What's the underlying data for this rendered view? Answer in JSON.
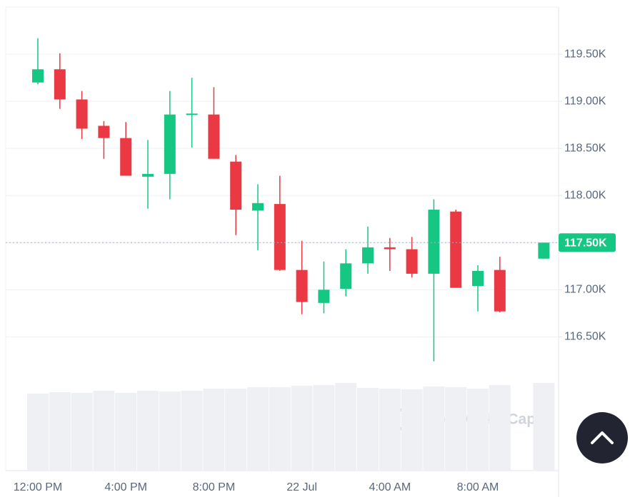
{
  "chart_data": {
    "type": "candlestick",
    "categories": [
      "12:00 PM",
      null,
      null,
      null,
      "4:00 PM",
      null,
      null,
      null,
      "8:00 PM",
      null,
      null,
      null,
      "22 Jul",
      null,
      null,
      null,
      "4:00 AM",
      null,
      null,
      null,
      "8:00 AM",
      null,
      null,
      null
    ],
    "open": [
      119200,
      119340,
      119020,
      118740,
      118610,
      118200,
      118230,
      118860,
      118860,
      118360,
      117840,
      117910,
      117210,
      116860,
      117010,
      117280,
      117450,
      117430,
      117170,
      117830,
      117040,
      117210,
      null,
      117330
    ],
    "high": [
      119670,
      119510,
      119110,
      118790,
      118780,
      118590,
      119110,
      119250,
      119150,
      118430,
      118120,
      118210,
      117520,
      117300,
      117430,
      117670,
      117550,
      117560,
      117960,
      117850,
      117260,
      117350,
      null,
      117500
    ],
    "low": [
      119180,
      118920,
      118600,
      118390,
      118210,
      117860,
      117960,
      118510,
      118390,
      117580,
      117420,
      117200,
      116740,
      116750,
      116930,
      117170,
      117200,
      117130,
      116240,
      117020,
      116770,
      116760,
      null,
      117330
    ],
    "close": [
      119340,
      119020,
      118710,
      118610,
      118210,
      118230,
      118860,
      118870,
      118390,
      117850,
      117920,
      117210,
      116870,
      117000,
      117280,
      117450,
      117430,
      117170,
      117850,
      117020,
      117200,
      116770,
      null,
      117500
    ],
    "volume": [
      108,
      110,
      109,
      112,
      109,
      112,
      111,
      112,
      115,
      115,
      117,
      117,
      119,
      120,
      123,
      116,
      115,
      114,
      118,
      117,
      115,
      120,
      null,
      123
    ],
    "up_color": "#16c784",
    "down_color": "#ea3943",
    "volume_color": "#eef0f3",
    "ylim": [
      115080,
      120000
    ],
    "yticks": [
      {
        "value": 116500,
        "label": "116.50K"
      },
      {
        "value": 117000,
        "label": "117.00K"
      },
      {
        "value": 117500,
        "label": "117.50K"
      },
      {
        "value": 118000,
        "label": "118.00K"
      },
      {
        "value": 118500,
        "label": "118.50K"
      },
      {
        "value": 119000,
        "label": "119.00K"
      },
      {
        "value": 119500,
        "label": "119.50K"
      }
    ],
    "current_price": {
      "value": 117500,
      "label": "117.50K"
    },
    "grid": true,
    "watermark": "CoinMarketCap"
  }
}
